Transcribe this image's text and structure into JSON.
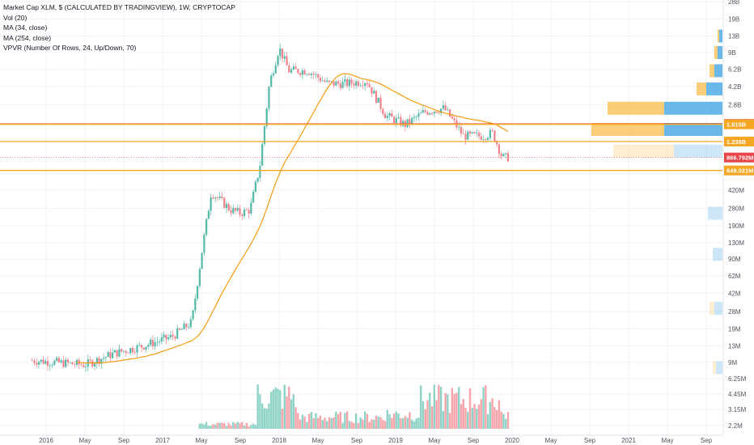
{
  "header": {
    "title": "Market Cap XLM, $ (CALCULATED BY TRADINGVIEW), 1W, CRYPTOCAP",
    "indicators": [
      "Vol (20)",
      "MA (34, close)",
      "MA (254, close)",
      "VPVR (Number Of Rows, 24, Up/Down, 70)"
    ]
  },
  "colors": {
    "up": "#53b9a9",
    "down": "#f0808a",
    "vol_up": "#8fd3c8",
    "vol_down": "#f6a5aa",
    "ma": "#f39c12",
    "line_red": "#e8492a",
    "line_orange": "#f5a623",
    "vpvr_up": "#5ab0e8",
    "vpvr_down": "#fac86a",
    "current": "#e8454a"
  },
  "chart_data": {
    "type": "candlestick",
    "title": "Market Cap XLM, $ (CALCULATED BY TRADINGVIEW), 1W, CRYPTOCAP",
    "y_scale": "log",
    "y_ticks": [
      "2.2M",
      "3.15M",
      "4.45M",
      "6.25M",
      "9M",
      "13M",
      "19M",
      "28M",
      "42M",
      "62M",
      "90M",
      "130M",
      "190M",
      "280M",
      "420M",
      "1.23B",
      "2.8B",
      "4.2B",
      "6.2B",
      "9B",
      "13B",
      "19B",
      "28B"
    ],
    "x_ticks": [
      "2016",
      "May",
      "Sep",
      "2017",
      "May",
      "Sep",
      "2018",
      "May",
      "Sep",
      "2019",
      "May",
      "Sep",
      "2020",
      "May",
      "Sep",
      "2021",
      "May",
      "Sep"
    ],
    "close_series_keypoints": [
      {
        "date": "2015-11",
        "close": 9500000.0
      },
      {
        "date": "2016-02",
        "close": 9000000.0
      },
      {
        "date": "2016-05",
        "close": 8500000.0
      },
      {
        "date": "2016-08",
        "close": 11000000.0
      },
      {
        "date": "2016-11",
        "close": 13000000.0
      },
      {
        "date": "2017-02",
        "close": 16000000.0
      },
      {
        "date": "2017-04",
        "close": 22000000.0
      },
      {
        "date": "2017-05",
        "close": 100000000.0
      },
      {
        "date": "2017-06",
        "close": 400000000.0
      },
      {
        "date": "2017-08",
        "close": 270000000.0
      },
      {
        "date": "2017-09",
        "close": 250000000.0
      },
      {
        "date": "2017-10",
        "close": 270000000.0
      },
      {
        "date": "2017-11",
        "close": 700000000.0
      },
      {
        "date": "2017-12",
        "close": 4500000000.0
      },
      {
        "date": "2018-01",
        "close": 10000000000.0
      },
      {
        "date": "2018-02",
        "close": 6000000000.0
      },
      {
        "date": "2018-04",
        "close": 6000000000.0
      },
      {
        "date": "2018-06",
        "close": 4500000000.0
      },
      {
        "date": "2018-08",
        "close": 4500000000.0
      },
      {
        "date": "2018-10",
        "close": 4800000000.0
      },
      {
        "date": "2018-12",
        "close": 2200000000.0
      },
      {
        "date": "2019-02",
        "close": 1800000000.0
      },
      {
        "date": "2019-04",
        "close": 2400000000.0
      },
      {
        "date": "2019-06",
        "close": 2600000000.0
      },
      {
        "date": "2019-08",
        "close": 1400000000.0
      },
      {
        "date": "2019-10",
        "close": 1400000000.0
      },
      {
        "date": "2019-11",
        "close": 1500000000.0
      },
      {
        "date": "2019-12",
        "close": 866792000.0
      }
    ],
    "horizontal_levels": [
      {
        "label": "1.831B",
        "value": 1831000000.0,
        "color": "#e8492a"
      },
      {
        "label": "1.815B",
        "value": 1815000000.0,
        "color": "#f5a623"
      },
      {
        "label": "1.238B",
        "value": 1238000000.0,
        "color": "#f5a623"
      },
      {
        "label": "649.021M",
        "value": 649021000.0,
        "color": "#f5a623"
      }
    ],
    "current_price": {
      "label": "866.792M",
      "value": 866792000.0
    }
  }
}
